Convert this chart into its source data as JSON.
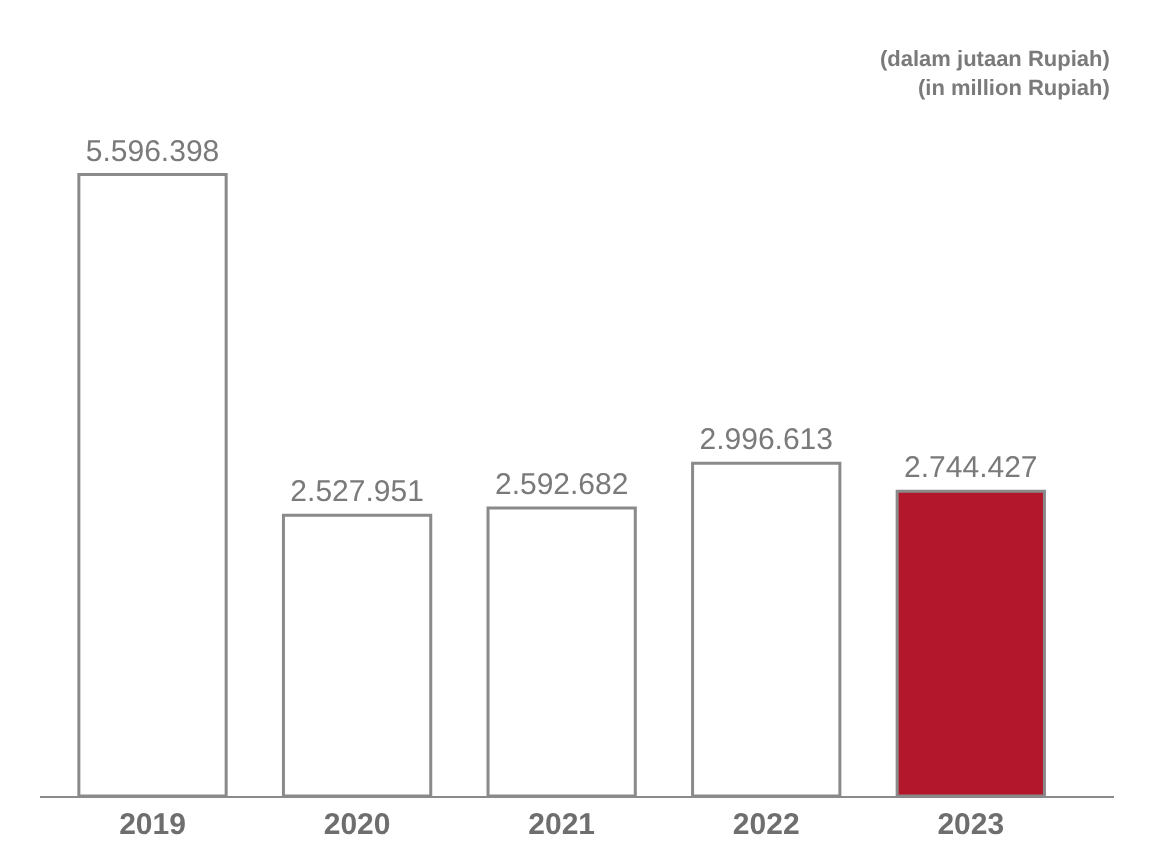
{
  "chart_data": {
    "type": "bar",
    "categories": [
      "2019",
      "2020",
      "2021",
      "2022",
      "2023"
    ],
    "values": [
      5596398,
      2527951,
      2592682,
      2996613,
      2744427
    ],
    "colors": [
      "#ffffff",
      "#ffffff",
      "#ffffff",
      "#ffffff",
      "#b3172b"
    ],
    "value_labels": [
      "5.596.398",
      "2.527.951",
      "2.592.682",
      "2.996.613",
      "2.744.427"
    ],
    "annotations": [
      "(dalam jutaan Rupiah)\n(in million Rupiah)"
    ],
    "legend": false
  }
}
